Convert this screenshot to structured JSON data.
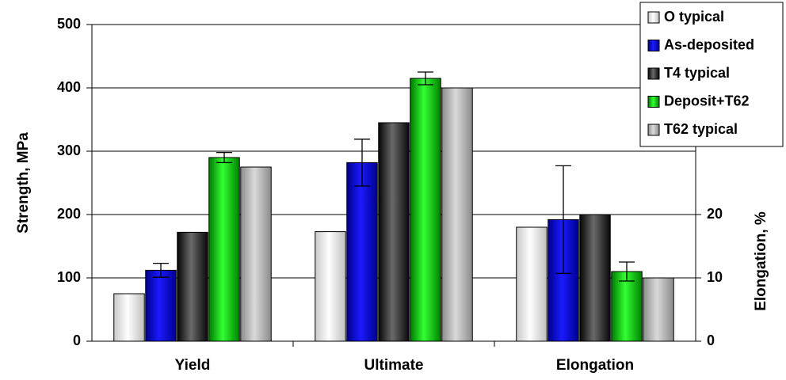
{
  "chart_data": {
    "type": "bar",
    "categories": [
      "Yield",
      "Ultimate",
      "Elongation"
    ],
    "ylabel": "Strength, MPa",
    "y2label": "Elongation, %",
    "ylim": [
      0,
      500
    ],
    "y2lim": [
      0,
      50
    ],
    "yticks": [
      0,
      100,
      200,
      300,
      400,
      500
    ],
    "y2ticks": [
      0,
      10,
      20
    ],
    "grid": true,
    "legend_position": "top-right",
    "series": [
      {
        "name": "O typical",
        "color": "#f0f0f0",
        "values": [
          75,
          173,
          18
        ],
        "errors": [
          null,
          null,
          null
        ]
      },
      {
        "name": "As-deposited",
        "color": "#0000e6",
        "values": [
          112,
          282,
          19.2
        ],
        "errors": [
          11,
          37,
          8.5
        ]
      },
      {
        "name": "T4 typical",
        "color": "#3a3a3a",
        "values": [
          172,
          345,
          20
        ],
        "errors": [
          null,
          null,
          null
        ]
      },
      {
        "name": "Deposit+T62",
        "color": "#00e600",
        "values": [
          290,
          415,
          11
        ],
        "errors": [
          8,
          10,
          1.5
        ]
      },
      {
        "name": "T62 typical",
        "color": "#b8b8b8",
        "values": [
          275,
          400,
          10
        ],
        "errors": [
          null,
          null,
          null
        ]
      }
    ],
    "axis_assignment": [
      "left",
      "left",
      "right"
    ]
  }
}
